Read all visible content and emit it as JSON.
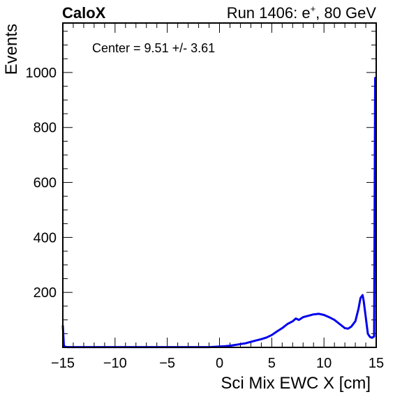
{
  "header": {
    "experiment": "CaloX",
    "run_prefix": "Run 1406: e",
    "run_charge": "+",
    "run_suffix": ", 80 GeV"
  },
  "chart_data": {
    "type": "line",
    "title": "",
    "xlabel": "Sci Mix EWC X [cm]",
    "ylabel": "Events",
    "xlim": [
      -15,
      15
    ],
    "ylim": [
      0,
      1180
    ],
    "xticks": [
      -15,
      -10,
      -5,
      0,
      5,
      10,
      15
    ],
    "xtick_labels": [
      "−15",
      "−10",
      "−5",
      "0",
      "5",
      "10",
      "15"
    ],
    "yticks": [
      200,
      400,
      600,
      800,
      1000
    ],
    "ytick_labels": [
      "200",
      "400",
      "600",
      "800",
      "1000"
    ],
    "annotation": "Center = 9.51 +/- 3.61",
    "series_color": "#0000ee",
    "series": [
      {
        "x": [
          -15,
          -14.9,
          -14.8,
          -14.5,
          -14,
          -13,
          -12,
          -11,
          -10,
          -9,
          -8,
          -7,
          -6,
          -5,
          -4,
          -3,
          -2,
          -1,
          -0.5,
          0,
          0.5,
          1,
          1.5,
          2,
          2.5,
          3,
          3.5,
          4,
          4.5,
          5,
          5.5,
          6,
          6.5,
          7,
          7.3,
          7.6,
          8,
          8.5,
          9,
          9.5,
          10,
          10.5,
          11,
          11.5,
          12,
          12.3,
          12.6,
          13,
          13.3,
          13.5,
          13.7,
          13.8,
          14,
          14.2,
          14.4,
          14.6,
          14.8,
          14.9,
          15
        ],
        "y": [
          80,
          8,
          2,
          1,
          1,
          1,
          1,
          1,
          1,
          1,
          1,
          1,
          1,
          1,
          1,
          1,
          1,
          1,
          2,
          3,
          4,
          6,
          9,
          12,
          15,
          20,
          25,
          30,
          36,
          45,
          58,
          70,
          85,
          95,
          105,
          100,
          110,
          115,
          120,
          122,
          118,
          110,
          100,
          85,
          70,
          68,
          75,
          95,
          140,
          180,
          190,
          170,
          110,
          50,
          38,
          35,
          40,
          980,
          980
        ]
      }
    ]
  }
}
